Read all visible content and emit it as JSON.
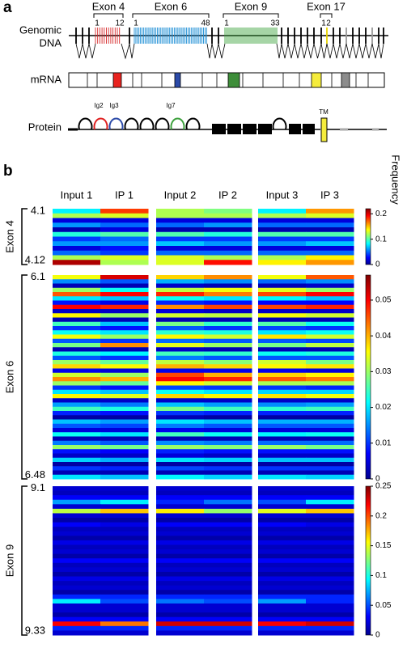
{
  "figure": {
    "panel_a": "a",
    "panel_b": "b"
  },
  "diagram": {
    "genomic_label": [
      "Genomic",
      "DNA"
    ],
    "mrna_label": "mRNA",
    "protein_label": "Protein",
    "exons": [
      {
        "label": "Exon 4",
        "first": "1",
        "last": "12"
      },
      {
        "label": "Exon 6",
        "first": "1",
        "last": "48"
      },
      {
        "label": "Exon 9",
        "first": "1",
        "last": "33"
      },
      {
        "label": "Exon 17",
        "first": "1",
        "last": "2"
      }
    ],
    "domains": [
      "Ig2",
      "Ig3",
      "Ig7",
      "TM"
    ]
  },
  "chart_data": [
    {
      "type": "heatmap",
      "ylabel": "Exon 4",
      "colorbar_label": "Frequency",
      "columns": [
        "Input 1",
        "IP 1",
        "Input 2",
        "IP 2",
        "Input 3",
        "IP 3"
      ],
      "categories": [
        "4.1",
        null,
        null,
        null,
        null,
        null,
        null,
        null,
        null,
        null,
        null,
        "4.12"
      ],
      "zlim": [
        0,
        0.22
      ],
      "zticks": [
        0,
        0.1,
        0.2
      ],
      "values": [
        [
          0.08,
          0.18,
          0.12,
          0.11,
          0.08,
          0.16
        ],
        [
          0.12,
          0.13,
          0.12,
          0.12,
          0.12,
          0.13
        ],
        [
          0.02,
          0.02,
          0.02,
          0.02,
          0.02,
          0.02
        ],
        [
          0.06,
          0.05,
          0.05,
          0.06,
          0.05,
          0.05
        ],
        [
          0.01,
          0.02,
          0.01,
          0.01,
          0.01,
          0.01
        ],
        [
          0.09,
          0.1,
          0.1,
          0.09,
          0.1,
          0.1
        ],
        [
          0.04,
          0.05,
          0.04,
          0.04,
          0.04,
          0.04
        ],
        [
          0.06,
          0.06,
          0.07,
          0.06,
          0.06,
          0.07
        ],
        [
          0.02,
          0.03,
          0.02,
          0.02,
          0.02,
          0.02
        ],
        [
          0.05,
          0.04,
          0.05,
          0.05,
          0.05,
          0.05
        ],
        [
          0.12,
          0.13,
          0.13,
          0.12,
          0.12,
          0.14
        ],
        [
          0.21,
          0.12,
          0.13,
          0.19,
          0.14,
          0.16
        ]
      ]
    },
    {
      "type": "heatmap",
      "ylabel": "Exon 6",
      "categories": [
        "6.1",
        null,
        null,
        null,
        null,
        null,
        null,
        null,
        null,
        null,
        null,
        null,
        null,
        null,
        null,
        null,
        null,
        null,
        null,
        null,
        null,
        null,
        null,
        null,
        null,
        null,
        null,
        null,
        null,
        null,
        null,
        null,
        null,
        null,
        null,
        null,
        null,
        null,
        null,
        null,
        null,
        null,
        null,
        null,
        null,
        null,
        null,
        "6.48"
      ],
      "zlim": [
        0,
        0.057
      ],
      "zticks": [
        0,
        0.01,
        0.02,
        0.03,
        0.04,
        0.05
      ],
      "values": [
        [
          0.035,
          0.052,
          0.038,
          0.042,
          0.035,
          0.045
        ],
        [
          0.015,
          0.012,
          0.017,
          0.015,
          0.013,
          0.015
        ],
        [
          0.003,
          0.003,
          0.004,
          0.003,
          0.003,
          0.004
        ],
        [
          0.03,
          0.022,
          0.032,
          0.035,
          0.034,
          0.03
        ],
        [
          0.045,
          0.05,
          0.048,
          0.043,
          0.046,
          0.05
        ],
        [
          0.02,
          0.018,
          0.022,
          0.02,
          0.021,
          0.018
        ],
        [
          0.008,
          0.006,
          0.009,
          0.008,
          0.007,
          0.007
        ],
        [
          0.05,
          0.048,
          0.042,
          0.046,
          0.046,
          0.048
        ],
        [
          0.004,
          0.004,
          0.005,
          0.004,
          0.004,
          0.004
        ],
        [
          0.036,
          0.03,
          0.033,
          0.032,
          0.035,
          0.033
        ],
        [
          0.003,
          0.003,
          0.003,
          0.003,
          0.003,
          0.003
        ],
        [
          0.025,
          0.018,
          0.028,
          0.024,
          0.026,
          0.022
        ],
        [
          0.01,
          0.008,
          0.012,
          0.01,
          0.011,
          0.01
        ],
        [
          0.022,
          0.02,
          0.024,
          0.023,
          0.02,
          0.022
        ],
        [
          0.035,
          0.03,
          0.036,
          0.033,
          0.037,
          0.033
        ],
        [
          0.012,
          0.01,
          0.013,
          0.012,
          0.012,
          0.011
        ],
        [
          0.028,
          0.042,
          0.034,
          0.03,
          0.028,
          0.032
        ],
        [
          0.003,
          0.003,
          0.004,
          0.003,
          0.003,
          0.003
        ],
        [
          0.023,
          0.021,
          0.025,
          0.024,
          0.022,
          0.023
        ],
        [
          0.012,
          0.01,
          0.014,
          0.012,
          0.012,
          0.012
        ],
        [
          0.03,
          0.027,
          0.032,
          0.029,
          0.033,
          0.028
        ],
        [
          0.038,
          0.036,
          0.04,
          0.038,
          0.036,
          0.037
        ],
        [
          0.006,
          0.005,
          0.006,
          0.006,
          0.006,
          0.005
        ],
        [
          0.033,
          0.03,
          0.046,
          0.04,
          0.038,
          0.036
        ],
        [
          0.042,
          0.04,
          0.05,
          0.048,
          0.045,
          0.043
        ],
        [
          0.03,
          0.027,
          0.036,
          0.033,
          0.031,
          0.031
        ],
        [
          0.01,
          0.008,
          0.011,
          0.01,
          0.01,
          0.009
        ],
        [
          0.02,
          0.018,
          0.022,
          0.02,
          0.019,
          0.019
        ],
        [
          0.036,
          0.034,
          0.038,
          0.036,
          0.037,
          0.035
        ],
        [
          0.004,
          0.004,
          0.004,
          0.004,
          0.004,
          0.004
        ],
        [
          0.016,
          0.014,
          0.018,
          0.016,
          0.015,
          0.016
        ],
        [
          0.025,
          0.023,
          0.028,
          0.025,
          0.024,
          0.025
        ],
        [
          0.009,
          0.008,
          0.01,
          0.009,
          0.009,
          0.009
        ],
        [
          0.002,
          0.002,
          0.003,
          0.002,
          0.002,
          0.002
        ],
        [
          0.018,
          0.016,
          0.02,
          0.018,
          0.017,
          0.017
        ],
        [
          0.012,
          0.011,
          0.014,
          0.012,
          0.012,
          0.012
        ],
        [
          0.005,
          0.005,
          0.006,
          0.005,
          0.005,
          0.005
        ],
        [
          0.022,
          0.02,
          0.025,
          0.022,
          0.021,
          0.022
        ],
        [
          0.003,
          0.003,
          0.003,
          0.003,
          0.003,
          0.003
        ],
        [
          0.014,
          0.012,
          0.015,
          0.014,
          0.013,
          0.013
        ],
        [
          0.03,
          0.028,
          0.03,
          0.029,
          0.03,
          0.028
        ],
        [
          0.008,
          0.007,
          0.009,
          0.008,
          0.008,
          0.008
        ],
        [
          0.004,
          0.004,
          0.005,
          0.004,
          0.004,
          0.004
        ],
        [
          0.019,
          0.017,
          0.02,
          0.019,
          0.018,
          0.018
        ],
        [
          0.002,
          0.002,
          0.002,
          0.002,
          0.002,
          0.002
        ],
        [
          0.01,
          0.009,
          0.011,
          0.01,
          0.01,
          0.01
        ],
        [
          0.003,
          0.003,
          0.003,
          0.003,
          0.003,
          0.003
        ],
        [
          0.02,
          0.018,
          0.021,
          0.019,
          0.02,
          0.019
        ]
      ]
    },
    {
      "type": "heatmap",
      "ylabel": "Exon 9",
      "categories": [
        "9.1",
        null,
        null,
        null,
        null,
        null,
        null,
        null,
        null,
        null,
        null,
        null,
        null,
        null,
        null,
        null,
        null,
        null,
        null,
        null,
        null,
        null,
        null,
        null,
        null,
        null,
        null,
        null,
        null,
        null,
        null,
        null,
        "9.33"
      ],
      "zlim": [
        0,
        0.25
      ],
      "zticks": [
        0,
        0.05,
        0.1,
        0.15,
        0.2,
        0.25
      ],
      "values": [
        [
          0.02,
          0.02,
          0.02,
          0.02,
          0.02,
          0.02
        ],
        [
          0.015,
          0.015,
          0.015,
          0.015,
          0.015,
          0.015
        ],
        [
          0.03,
          0.03,
          0.03,
          0.03,
          0.03,
          0.03
        ],
        [
          0.07,
          0.09,
          0.04,
          0.06,
          0.05,
          0.09
        ],
        [
          0.02,
          0.02,
          0.02,
          0.02,
          0.02,
          0.02
        ],
        [
          0.14,
          0.17,
          0.16,
          0.13,
          0.15,
          0.17
        ],
        [
          0.02,
          0.02,
          0.02,
          0.02,
          0.02,
          0.02
        ],
        [
          0.01,
          0.01,
          0.01,
          0.01,
          0.01,
          0.01
        ],
        [
          0.03,
          0.025,
          0.03,
          0.03,
          0.03,
          0.025
        ],
        [
          0.015,
          0.015,
          0.015,
          0.015,
          0.015,
          0.015
        ],
        [
          0.02,
          0.02,
          0.02,
          0.02,
          0.02,
          0.02
        ],
        [
          0.01,
          0.01,
          0.01,
          0.01,
          0.01,
          0.01
        ],
        [
          0.025,
          0.025,
          0.025,
          0.025,
          0.025,
          0.025
        ],
        [
          0.015,
          0.015,
          0.015,
          0.015,
          0.015,
          0.015
        ],
        [
          0.02,
          0.02,
          0.02,
          0.02,
          0.02,
          0.02
        ],
        [
          0.01,
          0.01,
          0.01,
          0.01,
          0.01,
          0.01
        ],
        [
          0.03,
          0.03,
          0.03,
          0.03,
          0.03,
          0.03
        ],
        [
          0.015,
          0.015,
          0.015,
          0.015,
          0.015,
          0.015
        ],
        [
          0.02,
          0.02,
          0.02,
          0.02,
          0.02,
          0.02
        ],
        [
          0.01,
          0.01,
          0.01,
          0.01,
          0.01,
          0.01
        ],
        [
          0.025,
          0.025,
          0.025,
          0.025,
          0.025,
          0.025
        ],
        [
          0.015,
          0.015,
          0.015,
          0.015,
          0.015,
          0.015
        ],
        [
          0.02,
          0.02,
          0.02,
          0.02,
          0.02,
          0.02
        ],
        [
          0.01,
          0.01,
          0.01,
          0.01,
          0.01,
          0.01
        ],
        [
          0.04,
          0.04,
          0.04,
          0.04,
          0.04,
          0.04
        ],
        [
          0.09,
          0.05,
          0.06,
          0.05,
          0.07,
          0.04
        ],
        [
          0.02,
          0.02,
          0.02,
          0.02,
          0.02,
          0.02
        ],
        [
          0.02,
          0.02,
          0.02,
          0.02,
          0.02,
          0.02
        ],
        [
          0.01,
          0.01,
          0.01,
          0.01,
          0.01,
          0.01
        ],
        [
          0.03,
          0.03,
          0.03,
          0.03,
          0.03,
          0.03
        ],
        [
          0.22,
          0.19,
          0.23,
          0.23,
          0.22,
          0.23
        ],
        [
          0.04,
          0.04,
          0.04,
          0.04,
          0.04,
          0.04
        ],
        [
          0.02,
          0.02,
          0.02,
          0.02,
          0.02,
          0.02
        ]
      ]
    }
  ]
}
